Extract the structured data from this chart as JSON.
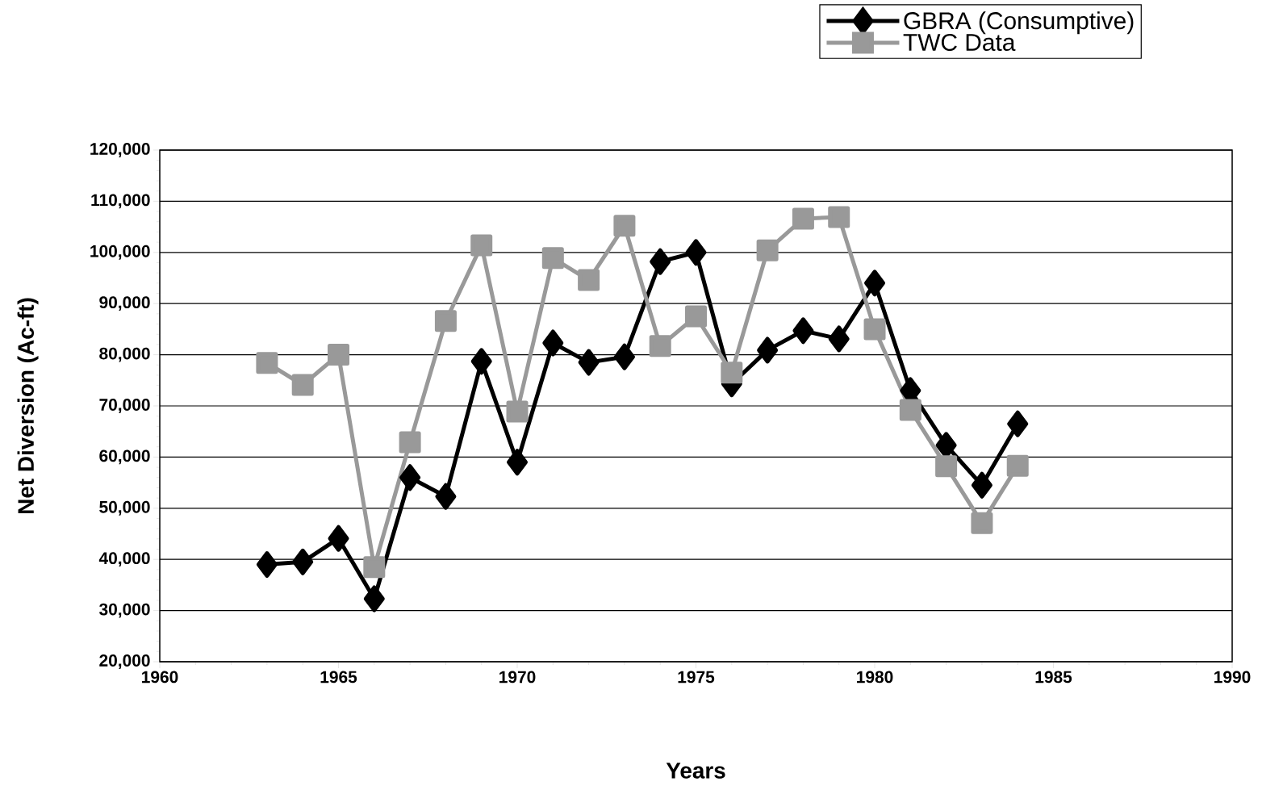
{
  "chart_data": {
    "type": "line",
    "xlabel": "Years",
    "ylabel": "Net Diversion (Ac-ft)",
    "xlim": [
      1960,
      1990
    ],
    "xticks": [
      1960,
      1965,
      1970,
      1975,
      1980,
      1985,
      1990
    ],
    "ylim": [
      20000,
      120000
    ],
    "yticks": [
      {
        "value": 20000,
        "label": "20,000"
      },
      {
        "value": 30000,
        "label": "30,000"
      },
      {
        "value": 40000,
        "label": "40,000"
      },
      {
        "value": 50000,
        "label": "50,000"
      },
      {
        "value": 60000,
        "label": "60,000"
      },
      {
        "value": 70000,
        "label": "70,000"
      },
      {
        "value": 80000,
        "label": "80,000"
      },
      {
        "value": 90000,
        "label": "90,000"
      },
      {
        "value": 100000,
        "label": "100,000"
      },
      {
        "value": 110000,
        "label": "110,000"
      },
      {
        "value": 120000,
        "label": "120,000"
      }
    ],
    "grid": "y",
    "legend": "top right",
    "line_style": "solid",
    "x": [
      1963,
      1964,
      1965,
      1966,
      1967,
      1968,
      1969,
      1970,
      1971,
      1972,
      1973,
      1974,
      1975,
      1976,
      1977,
      1978,
      1979,
      1980,
      1981,
      1982,
      1983,
      1984
    ],
    "series": [
      {
        "name": "GBRA (Consumptive)",
        "color": "#000000",
        "marker": "diamond",
        "values": [
          39000,
          39500,
          44100,
          32300,
          56000,
          52300,
          78700,
          59000,
          82300,
          78500,
          79600,
          98200,
          100000,
          74300,
          80900,
          84700,
          83100,
          94000,
          73000,
          62300,
          54500,
          66500
        ]
      },
      {
        "name": "TWC Data",
        "color": "#999999",
        "marker": "square",
        "values": [
          78400,
          74100,
          80000,
          38500,
          62900,
          86600,
          101400,
          68900,
          98900,
          94600,
          105200,
          81700,
          87500,
          76500,
          100400,
          106600,
          106900,
          85000,
          69200,
          58200,
          47100,
          58300
        ]
      }
    ]
  }
}
